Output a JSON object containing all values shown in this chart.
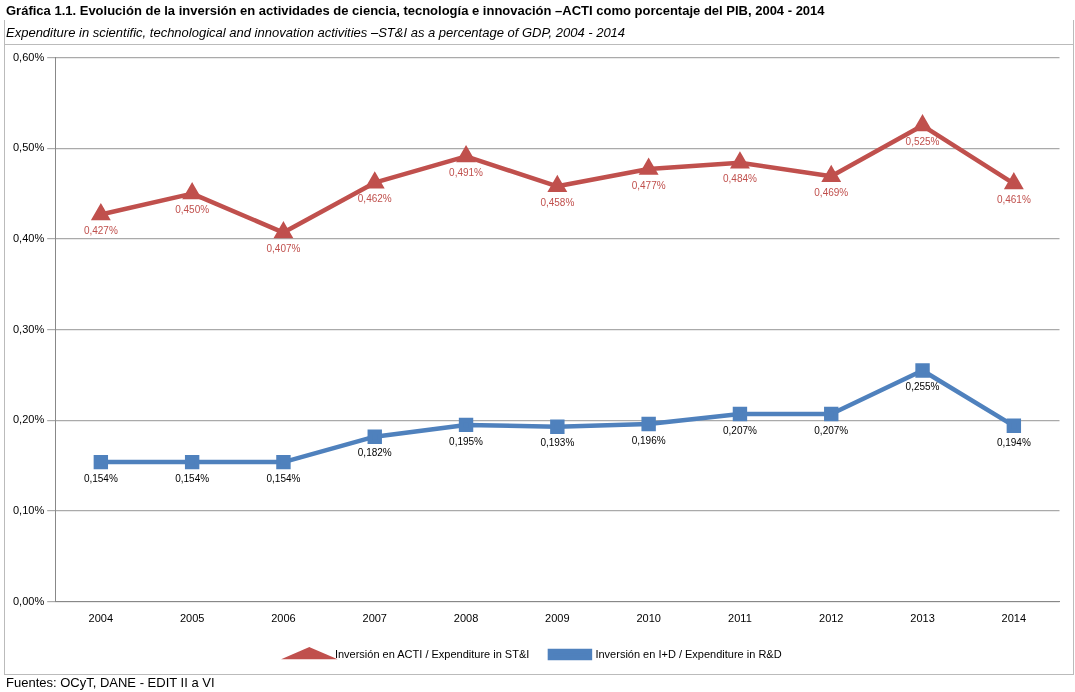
{
  "chart_data": {
    "type": "line",
    "title": "Gráfica 1.1. Evolución de la inversión en actividades de ciencia, tecnología e innovación –ACTI como porcentaje del PIB, 2004 - 2014",
    "subtitle": "Expenditure in scientific, technological and innovation activities –ST&I as a percentage of GDP, 2004 - 2014",
    "categories": [
      "2004",
      "2005",
      "2006",
      "2007",
      "2008",
      "2009",
      "2010",
      "2011",
      "2012",
      "2013",
      "2014"
    ],
    "series": [
      {
        "name": "Inversión en ACTI / Expenditure in ST&I",
        "color": "#c0504d",
        "marker": "triangle",
        "values": [
          0.427,
          0.45,
          0.407,
          0.462,
          0.491,
          0.458,
          0.477,
          0.484,
          0.469,
          0.525,
          0.461
        ],
        "value_labels": [
          "0,427%",
          "0,450%",
          "0,407%",
          "0,462%",
          "0,491%",
          "0,458%",
          "0,477%",
          "0,484%",
          "0,469%",
          "0,525%",
          "0,461%"
        ]
      },
      {
        "name": "Inversión en I+D / Expenditure in R&D",
        "color": "#4f81bd",
        "marker": "square",
        "values": [
          0.154,
          0.154,
          0.154,
          0.182,
          0.195,
          0.193,
          0.196,
          0.207,
          0.207,
          0.255,
          0.194
        ],
        "value_labels": [
          "0,154%",
          "0,154%",
          "0,154%",
          "0,182%",
          "0,195%",
          "0,193%",
          "0,196%",
          "0,207%",
          "0,207%",
          "0,255%",
          "0,194%"
        ]
      }
    ],
    "ylim": [
      0,
      0.6
    ],
    "yticks": [
      {
        "value": 0,
        "label": "0,00%"
      },
      {
        "value": 0.1,
        "label": "0,10%"
      },
      {
        "value": 0.2,
        "label": "0,20%"
      },
      {
        "value": 0.3,
        "label": "0,30%"
      },
      {
        "value": 0.4,
        "label": "0,40%"
      },
      {
        "value": 0.5,
        "label": "0,50%"
      },
      {
        "value": 0.6,
        "label": "0,60%"
      }
    ],
    "grid": "y",
    "legend": "bottom",
    "line_style": "solid",
    "annotations": [
      "Fuentes: OCyT, DANE - EDIT II a VI"
    ]
  }
}
